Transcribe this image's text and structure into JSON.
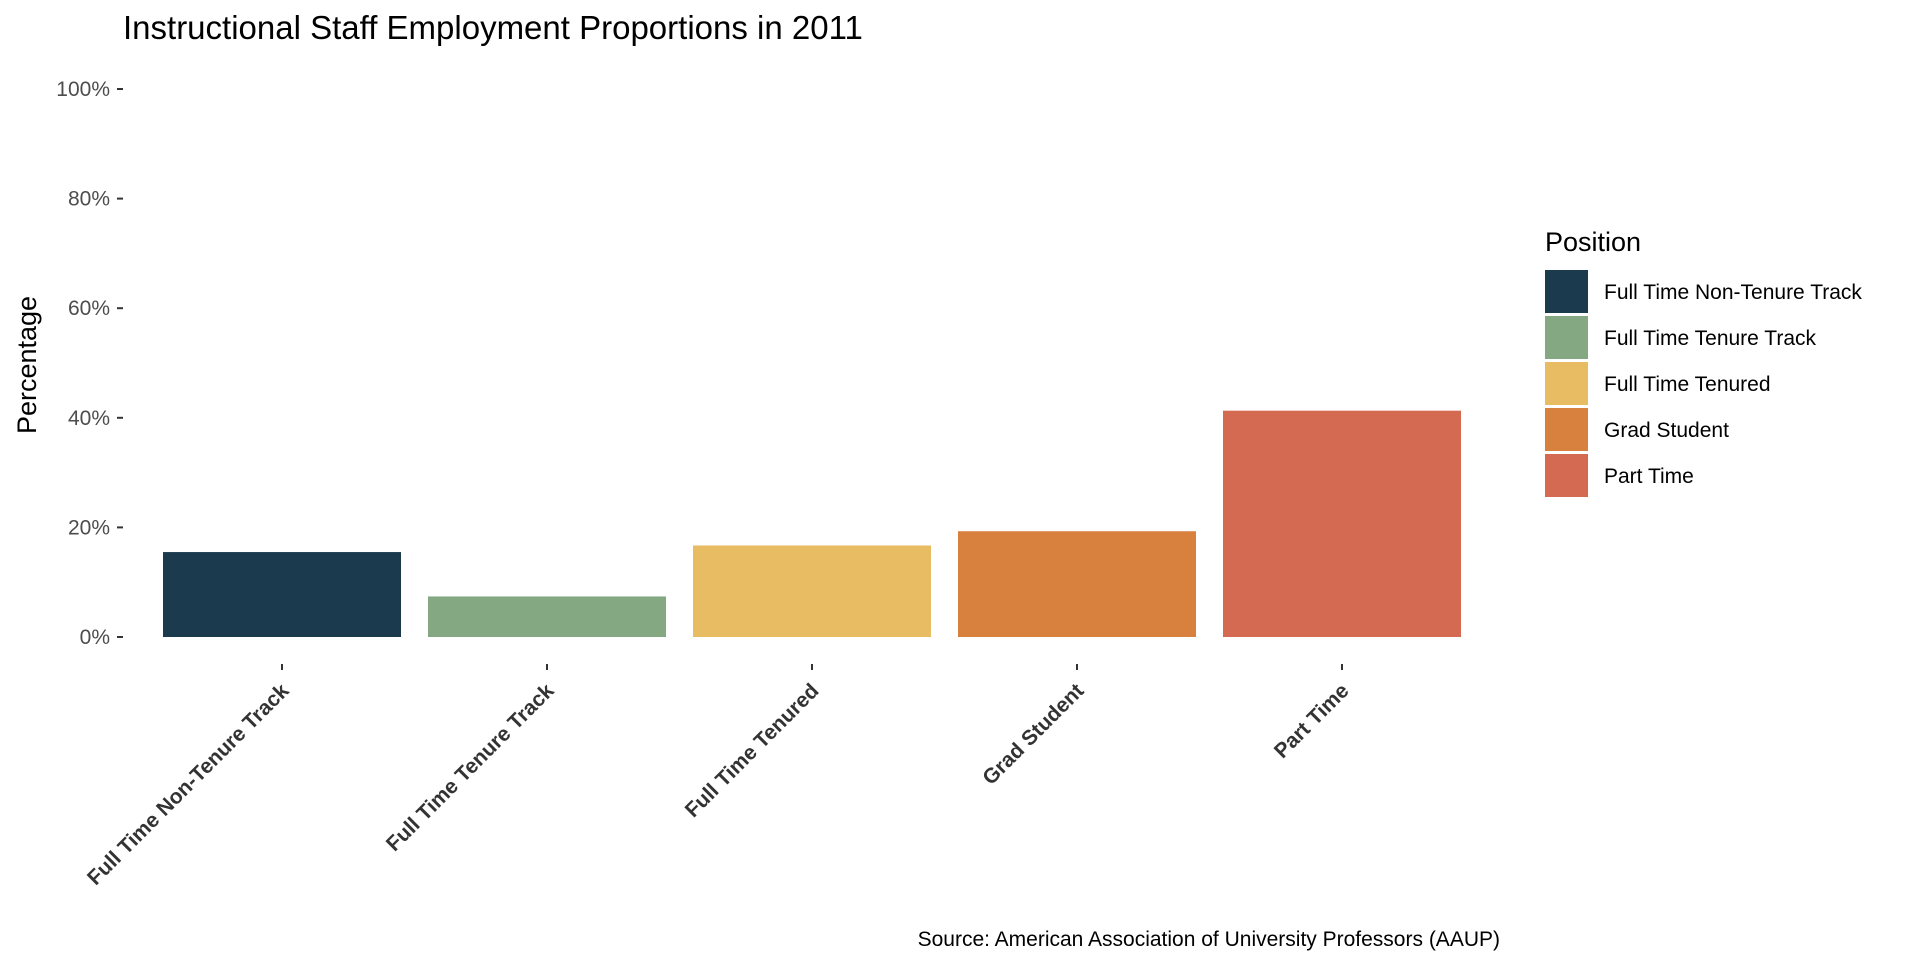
{
  "chart_data": {
    "type": "bar",
    "title": "Instructional Staff Employment Proportions in 2011",
    "ylabel": "Percentage",
    "xlabel": "",
    "ylim": [
      0,
      100
    ],
    "y_ticks": [
      0,
      20,
      40,
      60,
      80,
      100
    ],
    "y_tick_labels": [
      "0%",
      "20%",
      "40%",
      "60%",
      "80%",
      "100%"
    ],
    "categories": [
      "Full Time Non-Tenure Track",
      "Full Time Tenure Track",
      "Full Time Tenured",
      "Grad Student",
      "Part Time"
    ],
    "values": [
      15.5,
      7.4,
      16.7,
      19.3,
      41.3
    ],
    "colors": [
      "#1c3a4e",
      "#83a882",
      "#e8bc62",
      "#d8813f",
      "#d56a53"
    ],
    "grid": false,
    "legend": {
      "title": "Position",
      "placement": "right",
      "entries": [
        "Full Time Non-Tenure Track",
        "Full Time Tenure Track",
        "Full Time Tenured",
        "Grad Student",
        "Part Time"
      ]
    },
    "caption": "Source: American Association of University Professors (AAUP)"
  }
}
